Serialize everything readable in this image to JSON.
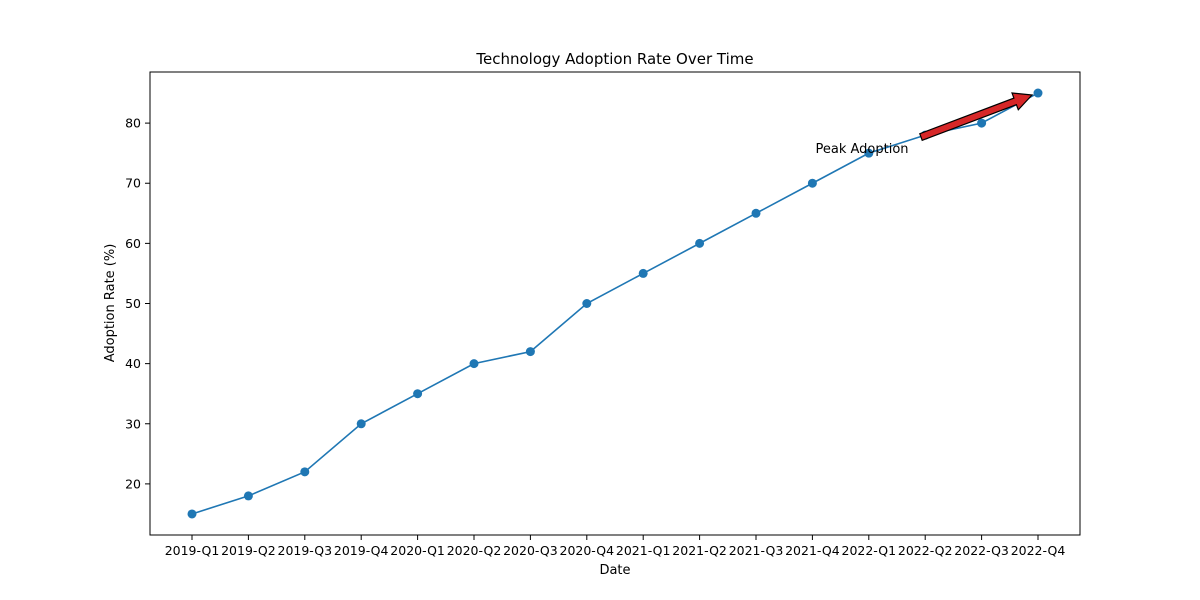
{
  "chart_data": {
    "type": "line",
    "title": "Technology Adoption Rate Over Time",
    "xlabel": "Date",
    "ylabel": "Adoption Rate (%)",
    "categories": [
      "2019-Q1",
      "2019-Q2",
      "2019-Q3",
      "2019-Q4",
      "2020-Q1",
      "2020-Q2",
      "2020-Q3",
      "2020-Q4",
      "2021-Q1",
      "2021-Q2",
      "2021-Q3",
      "2021-Q4",
      "2022-Q1",
      "2022-Q2",
      "2022-Q3",
      "2022-Q4"
    ],
    "series": [
      {
        "values": [
          15,
          18,
          22,
          30,
          35,
          40,
          42,
          50,
          55,
          60,
          65,
          70,
          75,
          78,
          80,
          85
        ],
        "color": "#1f77b4"
      }
    ],
    "yticks": [
      20,
      30,
      40,
      50,
      60,
      70,
      80
    ],
    "ylim": [
      11.5,
      88.5
    ],
    "grid": false,
    "legend": "none",
    "annotation": {
      "text": "Peak Adoption",
      "target_category": "2022-Q4",
      "target_value": 85,
      "arrow_color": "#d62728"
    }
  }
}
